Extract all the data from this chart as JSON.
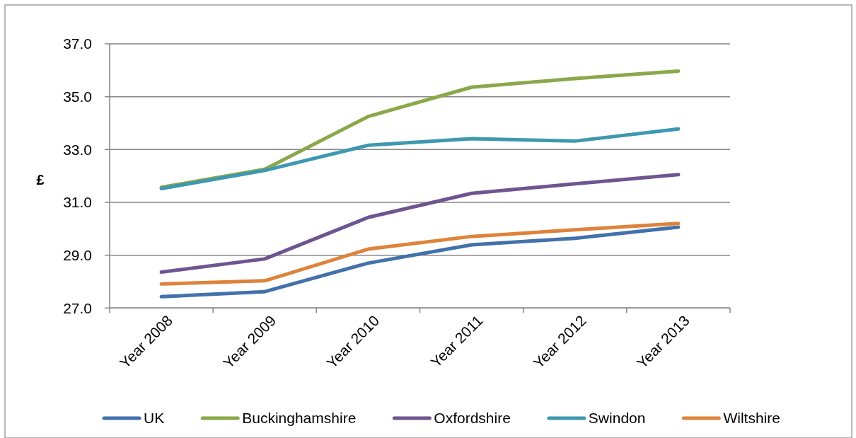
{
  "chart_data": {
    "type": "line",
    "ylabel": "£",
    "categories": [
      "Year 2008",
      "Year 2009",
      "Year 2010",
      "Year 2011",
      "Year 2012",
      "Year 2013"
    ],
    "series": [
      {
        "name": "UK",
        "color": "#4271ab",
        "values": [
          27.43,
          27.62,
          28.7,
          29.39,
          29.64,
          30.06
        ]
      },
      {
        "name": "Buckinghamshire",
        "color": "#8aa84a",
        "values": [
          31.57,
          32.25,
          34.25,
          35.36,
          35.69,
          35.97
        ]
      },
      {
        "name": "Oxfordshire",
        "color": "#6e5590",
        "values": [
          28.36,
          28.86,
          30.43,
          31.34,
          31.7,
          32.05
        ]
      },
      {
        "name": "Swindon",
        "color": "#3e98b0",
        "values": [
          31.52,
          32.21,
          33.16,
          33.41,
          33.32,
          33.78
        ]
      },
      {
        "name": "Wiltshire",
        "color": "#de833b",
        "values": [
          27.91,
          28.03,
          29.23,
          29.71,
          29.96,
          30.2
        ]
      }
    ],
    "ylim": [
      27,
      37
    ],
    "yticks": [
      {
        "value": 27,
        "label": "27.0"
      },
      {
        "value": 29,
        "label": "29.0"
      },
      {
        "value": 31,
        "label": "31.0"
      },
      {
        "value": 33,
        "label": "33.0"
      },
      {
        "value": 35,
        "label": "35.0"
      },
      {
        "value": 37,
        "label": "37.0"
      }
    ],
    "grid": "y",
    "legend": "bottom",
    "line_style": "solid"
  }
}
